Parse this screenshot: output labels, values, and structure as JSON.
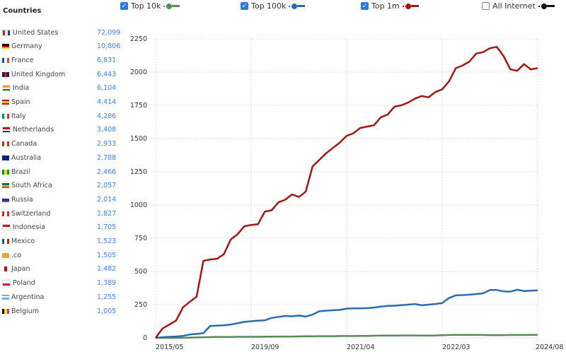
{
  "sidebar": {
    "title": "Countries",
    "items": [
      {
        "name": "United States",
        "value": "72,099",
        "flag": [
          "#b22234",
          "#fff",
          "#3c3b6e"
        ]
      },
      {
        "name": "Germany",
        "value": "10,806",
        "flag": [
          "#000",
          "#dd0000",
          "#ffce00"
        ],
        "h": 1
      },
      {
        "name": "France",
        "value": "6,831",
        "flag": [
          "#0055a4",
          "#fff",
          "#ef4135"
        ]
      },
      {
        "name": "United Kingdom",
        "value": "6,443",
        "flag": [
          "#012169",
          "#c8102e",
          "#012169"
        ]
      },
      {
        "name": "India",
        "value": "6,104",
        "flag": [
          "#ff9933",
          "#fff",
          "#138808"
        ],
        "h": 1
      },
      {
        "name": "Spain",
        "value": "4,414",
        "flag": [
          "#aa151b",
          "#f1bf00",
          "#aa151b"
        ],
        "h": 1
      },
      {
        "name": "Italy",
        "value": "4,286",
        "flag": [
          "#009246",
          "#fff",
          "#ce2b37"
        ]
      },
      {
        "name": "Netherlands",
        "value": "3,408",
        "flag": [
          "#ae1c28",
          "#fff",
          "#21468b"
        ],
        "h": 1
      },
      {
        "name": "Canada",
        "value": "2,933",
        "flag": [
          "#d52b1e",
          "#fff",
          "#d52b1e"
        ]
      },
      {
        "name": "Australia",
        "value": "2,788",
        "flag": [
          "#00247d",
          "#00247d",
          "#00247d"
        ]
      },
      {
        "name": "Brazil",
        "value": "2,466",
        "flag": [
          "#009c3b",
          "#ffdf00",
          "#009c3b"
        ]
      },
      {
        "name": "South Africa",
        "value": "2,057",
        "flag": [
          "#007a4d",
          "#ffb612",
          "#de3831"
        ],
        "h": 1
      },
      {
        "name": "Russia",
        "value": "2,014",
        "flag": [
          "#fff",
          "#0039a6",
          "#d52b1e"
        ],
        "h": 1
      },
      {
        "name": "Switzerland",
        "value": "1,827",
        "flag": [
          "#d52b1e",
          "#fff",
          "#d52b1e"
        ]
      },
      {
        "name": "Indonesia",
        "value": "1,705",
        "flag": [
          "#ce1126",
          "#fff",
          "#fff"
        ],
        "h": 1
      },
      {
        "name": "Mexico",
        "value": "1,523",
        "flag": [
          "#006847",
          "#fff",
          "#ce1126"
        ]
      },
      {
        "name": ".co",
        "value": "1,505",
        "flag": [
          "#f5a623",
          "#f5a623",
          "#f5a623"
        ]
      },
      {
        "name": "Japan",
        "value": "1,482",
        "flag": [
          "#fff",
          "#bc002d",
          "#fff"
        ]
      },
      {
        "name": "Poland",
        "value": "1,389",
        "flag": [
          "#fff",
          "#dc143c"
        ],
        "h": 1
      },
      {
        "name": "Argentina",
        "value": "1,255",
        "flag": [
          "#74acdf",
          "#fff",
          "#74acdf"
        ],
        "h": 1
      },
      {
        "name": "Belgium",
        "value": "1,005",
        "flag": [
          "#000",
          "#fdda24",
          "#ef3340"
        ]
      }
    ]
  },
  "legend": [
    {
      "label": "Top 10k",
      "checked": true,
      "color": "#5a8a5a"
    },
    {
      "label": "Top 100k",
      "checked": true,
      "color": "#2b6cb0"
    },
    {
      "label": "Top 1m",
      "checked": true,
      "color": "#a31515"
    },
    {
      "label": "All Internet",
      "checked": false,
      "color": "#111111"
    }
  ],
  "chart_data": {
    "type": "line",
    "title": "",
    "xlabel": "",
    "ylabel": "",
    "ylim": [
      0,
      2250
    ],
    "yticks": [
      "0",
      "250",
      "500",
      "750",
      "1000",
      "1250",
      "1500",
      "1750",
      "2000",
      "2250"
    ],
    "xticks": [
      {
        "index": 0,
        "label": "2015/05"
      },
      {
        "index": 14,
        "label": "2019/09"
      },
      {
        "index": 28,
        "label": "2021/04"
      },
      {
        "index": 42,
        "label": "2022/03"
      },
      {
        "index": 56,
        "label": "2024/08"
      }
    ],
    "grid": true,
    "series": [
      {
        "name": "Top 10k",
        "color": "#5a8a5a",
        "values": [
          0,
          0,
          0,
          0,
          0,
          2,
          3,
          5,
          6,
          7,
          7,
          7,
          8,
          8,
          8,
          8,
          9,
          9,
          10,
          10,
          10,
          11,
          12,
          12,
          13,
          13,
          13,
          14,
          14,
          14,
          15,
          15,
          16,
          17,
          17,
          17,
          18,
          18,
          18,
          17,
          17,
          18,
          20,
          22,
          23,
          23,
          23,
          23,
          22,
          21,
          20,
          21,
          22,
          22,
          22,
          23,
          23
        ]
      },
      {
        "name": "Top 100k",
        "color": "#2b6cb0",
        "values": [
          0,
          5,
          8,
          10,
          15,
          25,
          30,
          35,
          90,
          92,
          95,
          100,
          110,
          120,
          125,
          130,
          132,
          150,
          158,
          165,
          162,
          168,
          160,
          175,
          200,
          205,
          208,
          210,
          220,
          222,
          222,
          224,
          228,
          235,
          240,
          242,
          246,
          250,
          255,
          245,
          250,
          255,
          262,
          300,
          320,
          322,
          325,
          330,
          335,
          360,
          360,
          350,
          348,
          362,
          352,
          355,
          358
        ]
      },
      {
        "name": "Top 1m",
        "color": "#a31515",
        "values": [
          0,
          70,
          100,
          130,
          230,
          270,
          310,
          580,
          590,
          595,
          630,
          740,
          780,
          840,
          850,
          855,
          950,
          960,
          1020,
          1040,
          1080,
          1060,
          1100,
          1290,
          1340,
          1390,
          1430,
          1470,
          1520,
          1540,
          1580,
          1590,
          1600,
          1660,
          1680,
          1740,
          1750,
          1770,
          1800,
          1820,
          1810,
          1850,
          1870,
          1930,
          2030,
          2050,
          2080,
          2140,
          2150,
          2180,
          2190,
          2120,
          2020,
          2010,
          2060,
          2020,
          2030
        ]
      }
    ]
  }
}
